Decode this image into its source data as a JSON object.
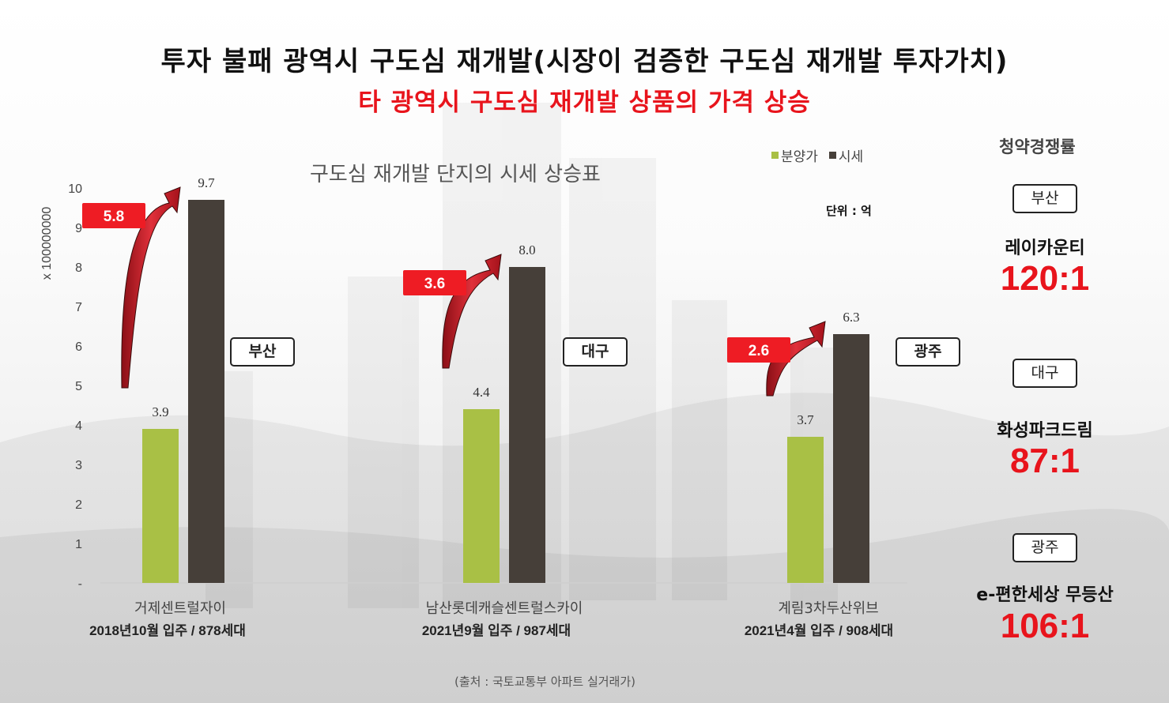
{
  "header": {
    "title": "투자 불패 광역시 구도심 재개발(시장이 검증한 구도심 재개발 투자가치)",
    "subtitle": "타 광역시 구도심 재개발 상품의 가격 상승"
  },
  "chart_data": {
    "type": "bar",
    "title": "구도심 재개발 단지의 시세 상승표",
    "ylabel": "x 100000000",
    "unit_note": "단위 : 억",
    "ylim": [
      0,
      10
    ],
    "yticks": [
      "-",
      "1",
      "2",
      "3",
      "4",
      "5",
      "6",
      "7",
      "8",
      "9",
      "10"
    ],
    "categories": [
      "거제센트럴자이",
      "남산롯데캐슬센트럴스카이",
      "계림3차두산위브"
    ],
    "category_details": [
      "2018년10월 입주 / 878세대",
      "2021년9월 입주 / 987세대",
      "2021년4월 입주 / 908세대"
    ],
    "series": [
      {
        "name": "분양가",
        "color": "#a9c045",
        "values": [
          3.9,
          4.4,
          3.7
        ],
        "labels": [
          "3.9",
          "4.4",
          "3.7"
        ]
      },
      {
        "name": "시세",
        "color": "#463f39",
        "values": [
          9.7,
          8.0,
          6.3
        ],
        "labels": [
          "9.7",
          "8.0",
          "6.3"
        ]
      }
    ],
    "increase_labels": [
      "5.8",
      "3.6",
      "2.6"
    ],
    "regions": [
      "부산",
      "대구",
      "광주"
    ],
    "grid": false,
    "legend_position": "top-right"
  },
  "sidebar": {
    "title": "청약경쟁률",
    "items": [
      {
        "region": "부산",
        "complex": "레이카운티",
        "ratio": "120:1"
      },
      {
        "region": "대구",
        "complex": "화성파크드림",
        "ratio": "87:1"
      },
      {
        "region": "광주",
        "complex": "e-편한세상 무등산",
        "ratio": "106:1"
      }
    ]
  },
  "footer": {
    "source": "(출처 : 국토교통부 아파트 실거래가)"
  },
  "colors": {
    "accent_red": "#e8141c",
    "bar_green": "#a9c045",
    "bar_dark": "#463f39"
  }
}
